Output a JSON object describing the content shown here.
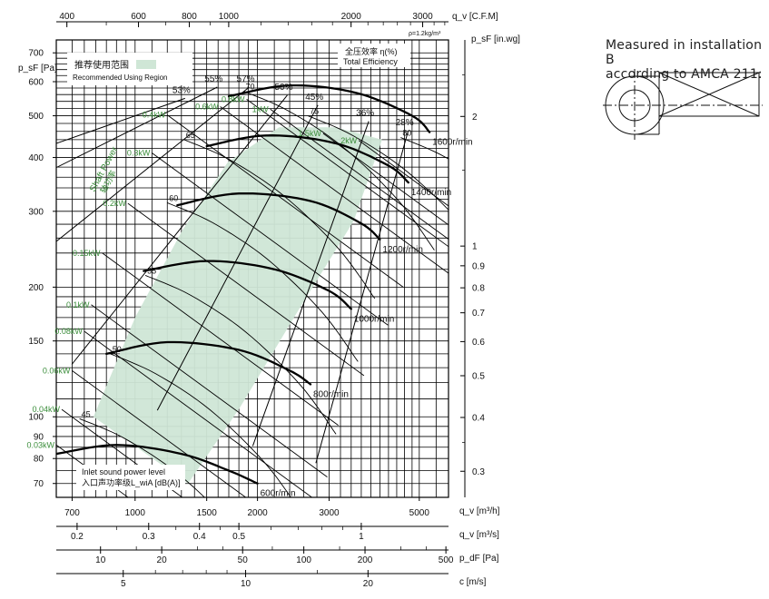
{
  "chart_data": {
    "type": "line",
    "title": "",
    "density_note": "ρ=1.2kg/m³",
    "x_axis": {
      "label": "q_v [m³/h]",
      "range": [
        640,
        5900
      ],
      "ticks": [
        700,
        1000,
        1500,
        2000,
        3000,
        5000
      ],
      "tick_labels": [
        "700",
        "1000",
        "1500",
        "2000",
        "3000",
        "5000"
      ]
    },
    "y_axis": {
      "label": "p_sF [Pa]",
      "scale": "log",
      "range": [
        65,
        750
      ],
      "ticks": [
        70,
        80,
        90,
        100,
        150,
        200,
        300,
        400,
        500,
        600,
        700
      ],
      "tick_labels": [
        "70",
        "80",
        "90",
        "100",
        "150",
        "200",
        "300",
        "400",
        "500",
        "600",
        "700"
      ]
    },
    "top_axis": {
      "label": "q_v [C.F.M]",
      "ticks": [
        400,
        600,
        800,
        1000,
        2000,
        3000
      ],
      "tick_labels": [
        "400",
        "600",
        "800",
        "1000",
        "2000",
        "3000"
      ]
    },
    "right_axis": {
      "label": "p_sF [in.wg]",
      "ticks": [
        2,
        1,
        0.9,
        0.8,
        0.7,
        0.6,
        0.5,
        0.4,
        0.3
      ],
      "tick_labels": [
        "2",
        "1",
        "0.9",
        "0.8",
        "0.7",
        "0.6",
        "0.5",
        "0.4",
        "0.3"
      ]
    },
    "bottom_axes": [
      {
        "label": "q_v [m³/s]",
        "ticks": [
          0.2,
          0.3,
          0.4,
          0.5,
          1
        ],
        "tick_labels": [
          "0.2",
          "0.3",
          "0.4",
          "0.5",
          "1"
        ]
      },
      {
        "label": "p_dF [Pa]",
        "ticks": [
          10,
          20,
          50,
          100,
          200,
          500
        ],
        "tick_labels": [
          "10",
          "20",
          "50",
          "100",
          "200",
          "500"
        ]
      },
      {
        "label": "c [m/s]",
        "ticks": [
          5,
          10,
          20
        ],
        "tick_labels": [
          "5",
          "10",
          "20"
        ]
      }
    ],
    "series": [
      {
        "name": "600r/min",
        "speed_rpm": 600,
        "x": [
          640,
          900,
          1300,
          1700,
          2000
        ],
        "y": [
          82,
          86,
          82,
          75,
          70
        ]
      },
      {
        "name": "800r/min",
        "speed_rpm": 800,
        "x": [
          850,
          1200,
          1800,
          2400,
          2700
        ],
        "y": [
          140,
          149,
          143,
          128,
          119
        ]
      },
      {
        "name": "1000r/min",
        "speed_rpm": 1000,
        "x": [
          1050,
          1500,
          2200,
          3000,
          3400
        ],
        "y": [
          218,
          230,
          220,
          196,
          178
        ]
      },
      {
        "name": "1200r/min",
        "speed_rpm": 1200,
        "x": [
          1270,
          1800,
          2700,
          3600,
          4000
        ],
        "y": [
          310,
          330,
          317,
          281,
          258
        ]
      },
      {
        "name": "1400r/min",
        "speed_rpm": 1400,
        "x": [
          1500,
          2100,
          3100,
          4200,
          4700
        ],
        "y": [
          425,
          450,
          432,
          383,
          350
        ]
      },
      {
        "name": "1600r/min",
        "speed_rpm": 1600,
        "x": [
          1700,
          2400,
          3500,
          4800,
          5300
        ],
        "y": [
          555,
          588,
          565,
          500,
          458
        ]
      }
    ],
    "efficiency_lines": {
      "label_cn": "全压效率 η(%)",
      "label_en": "Total Efficiency",
      "labels": [
        "53%",
        "55%",
        "57%",
        "50%",
        "45%",
        "36%",
        "28%"
      ],
      "values": [
        53,
        55,
        57,
        50,
        45,
        36,
        28
      ],
      "anchor_x": [
        1300,
        1560,
        1870,
        2320,
        2760,
        3680,
        4600
      ],
      "anchor_y": [
        565,
        600,
        600,
        575,
        545,
        500,
        475
      ]
    },
    "power_lines": {
      "label_cn": "轴功率",
      "label_en": "Shaft Power",
      "labels": [
        "0.03kW",
        "0.04kW",
        "0.06kW",
        "0.08kW",
        "0.1kW",
        "0.15kW",
        "0.2kW",
        "0.3kW",
        "0.4kW",
        "0.6kW",
        "0.8kW",
        "1kW",
        "1.5kW",
        "2kW"
      ],
      "values": [
        0.03,
        0.04,
        0.06,
        0.08,
        0.1,
        0.15,
        0.2,
        0.3,
        0.4,
        0.6,
        0.8,
        1,
        1.5,
        2
      ],
      "label_x": [
        640,
        660,
        700,
        750,
        780,
        830,
        960,
        1100,
        1200,
        1620,
        1880,
        2150,
        2900,
        3550
      ],
      "label_y": [
        86,
        104,
        128,
        158,
        182,
        240,
        313,
        410,
        502,
        525,
        546,
        518,
        455,
        438
      ]
    },
    "sound_lines": {
      "label_en": "Inlet sound power level",
      "label_cn": "入口声功率级L_wiA [dB(A)]",
      "labels": [
        "45",
        "50",
        "55",
        "60",
        "65",
        "70",
        "75",
        "80"
      ],
      "values": [
        45,
        50,
        55,
        60,
        65,
        70,
        75,
        80
      ],
      "label_x": [
        730,
        870,
        1060,
        1200,
        1320,
        1850,
        2660,
        4500
      ],
      "label_y": [
        99,
        140,
        213,
        314,
        440,
        570,
        500,
        445
      ]
    },
    "recommended_region": {
      "label_cn": "推荐使用范围",
      "label_en": "Recommended Using Region",
      "color": "#cfe6d6",
      "x": [
        790,
        1000,
        1310,
        1690,
        2260,
        3120,
        4050,
        3450,
        2550,
        1810,
        1350
      ],
      "y": [
        100,
        170,
        272,
        390,
        470,
        470,
        440,
        285,
        180,
        105,
        70
      ]
    }
  },
  "note": {
    "line1": "Measured in installation B",
    "line2": "according to AMCA 211:"
  },
  "colors": {
    "power_text": "#3a8d3a",
    "grid": "#000000",
    "region": "#cfe6d6"
  }
}
